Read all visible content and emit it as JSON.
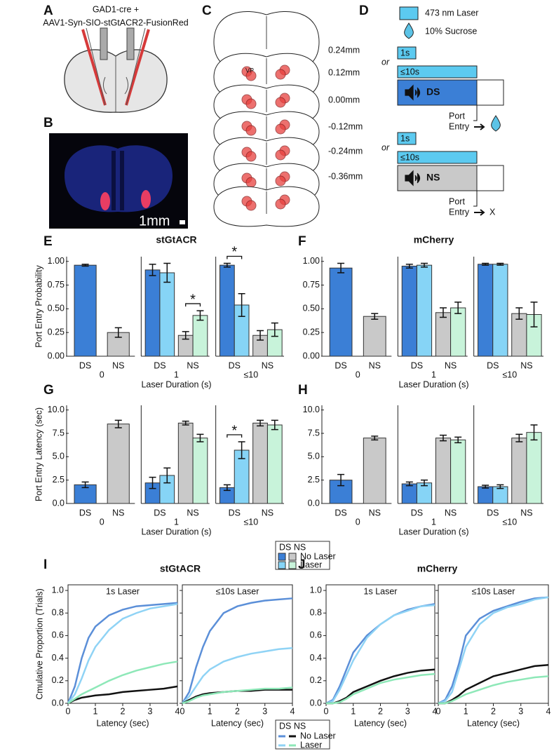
{
  "panels": {
    "A": {
      "label": "A",
      "lines": [
        "GAD1-cre +",
        "AAV1-Syn-SIO-stGtACR2-FusionRed"
      ]
    },
    "B": {
      "label": "B",
      "scale": "1mm"
    },
    "C": {
      "label": "C",
      "inset": "VP",
      "levels": [
        "0.24mm",
        "0.12mm",
        "0.00mm",
        "-0.12mm",
        "-0.24mm",
        "-0.36mm"
      ]
    },
    "D": {
      "label": "D",
      "legend": [
        "473 nm Laser",
        "10% Sucrose"
      ],
      "trials": [
        {
          "or": "or",
          "short": "1s",
          "long": "≤10s",
          "cue": "DS",
          "port": "Port",
          "entry": "Entry"
        },
        {
          "or": "or",
          "short": "1s",
          "long": "≤10s",
          "cue": "NS",
          "port": "Port",
          "entry": "Entry",
          "outcome": "X"
        }
      ]
    }
  },
  "chart_data": [
    {
      "type": "bar",
      "panel": "E",
      "title": "stGtACR",
      "ylabel": "Port Entry Probability",
      "xlabel": "Laser Duration (s)",
      "groups": [
        "0",
        "1",
        "≤10"
      ],
      "categories": [
        "DS",
        "NS"
      ],
      "ylim": [
        0,
        1.05
      ],
      "yticks": [
        {
          "value": 0,
          "label": "0.00"
        },
        {
          "value": 0.25,
          "label": "0.25"
        },
        {
          "value": 0.5,
          "label": "0.50"
        },
        {
          "value": 0.75,
          "label": "0.75"
        },
        {
          "value": 1,
          "label": "1.00"
        }
      ],
      "series": [
        {
          "name": "No Laser",
          "colors": [
            "#3b7fd6",
            "#c9c9c9"
          ],
          "values": [
            [
              0.96,
              0.25
            ],
            [
              0.91,
              0.22
            ],
            [
              0.96,
              0.22
            ]
          ],
          "errors": [
            [
              0.01,
              0.05
            ],
            [
              0.06,
              0.04
            ],
            [
              0.02,
              0.05
            ]
          ]
        },
        {
          "name": "Laser",
          "colors": [
            "#86d4f6",
            "#c8f3da"
          ],
          "values": [
            null,
            [
              0.88,
              0.43
            ],
            [
              0.54,
              0.28
            ]
          ],
          "errors": [
            null,
            [
              0.1,
              0.05
            ],
            [
              0.12,
              0.07
            ]
          ]
        }
      ],
      "annotations": [
        {
          "text": "*",
          "group": "1",
          "category": "NS"
        },
        {
          "text": "*",
          "group": "≤10",
          "category": "DS"
        }
      ]
    },
    {
      "type": "bar",
      "panel": "F",
      "title": "mCherry",
      "xlabel": "Laser Duration (s)",
      "groups": [
        "0",
        "1",
        "≤10"
      ],
      "categories": [
        "DS",
        "NS"
      ],
      "ylim": [
        0,
        1.05
      ],
      "yticks": [
        {
          "value": 0,
          "label": "0.00"
        },
        {
          "value": 0.25,
          "label": "0.25"
        },
        {
          "value": 0.5,
          "label": "0.50"
        },
        {
          "value": 0.75,
          "label": "0.75"
        },
        {
          "value": 1,
          "label": "1.00"
        }
      ],
      "series": [
        {
          "name": "No Laser",
          "colors": [
            "#3b7fd6",
            "#c9c9c9"
          ],
          "values": [
            [
              0.93,
              0.42
            ],
            [
              0.95,
              0.46
            ],
            [
              0.97,
              0.45
            ]
          ],
          "errors": [
            [
              0.05,
              0.03
            ],
            [
              0.02,
              0.05
            ],
            [
              0.01,
              0.06
            ]
          ]
        },
        {
          "name": "Laser",
          "colors": [
            "#86d4f6",
            "#c8f3da"
          ],
          "values": [
            null,
            [
              0.96,
              0.51
            ],
            [
              0.97,
              0.44
            ]
          ],
          "errors": [
            null,
            [
              0.02,
              0.06
            ],
            [
              0.01,
              0.13
            ]
          ]
        }
      ]
    },
    {
      "type": "bar",
      "panel": "G",
      "ylabel": "Port Entry Latency (sec)",
      "xlabel": "Laser Duration (s)",
      "legend_header": "DS NS",
      "groups": [
        "0",
        "1",
        "≤10"
      ],
      "categories": [
        "DS",
        "NS"
      ],
      "ylim": [
        0,
        10.5
      ],
      "yticks": [
        {
          "value": 0,
          "label": "0.0"
        },
        {
          "value": 2.5,
          "label": "2.5"
        },
        {
          "value": 5,
          "label": "5.0"
        },
        {
          "value": 7.5,
          "label": "7.5"
        },
        {
          "value": 10,
          "label": "10.0"
        }
      ],
      "series": [
        {
          "name": "No Laser",
          "colors": [
            "#3b7fd6",
            "#c9c9c9"
          ],
          "values": [
            [
              2.0,
              8.5
            ],
            [
              2.2,
              8.6
            ],
            [
              1.7,
              8.6
            ]
          ],
          "errors": [
            [
              0.3,
              0.4
            ],
            [
              0.6,
              0.2
            ],
            [
              0.3,
              0.3
            ]
          ]
        },
        {
          "name": "Laser",
          "colors": [
            "#86d4f6",
            "#c8f3da"
          ],
          "values": [
            null,
            [
              3.0,
              7.0
            ],
            [
              5.7,
              8.4
            ]
          ],
          "errors": [
            null,
            [
              0.8,
              0.4
            ],
            [
              0.9,
              0.5
            ]
          ]
        }
      ],
      "annotations": [
        {
          "text": "*",
          "group": "≤10",
          "category": "DS"
        }
      ]
    },
    {
      "type": "bar",
      "panel": "H",
      "xlabel": "Laser Duration (s)",
      "groups": [
        "0",
        "1",
        "≤10"
      ],
      "categories": [
        "DS",
        "NS"
      ],
      "ylim": [
        0,
        10.5
      ],
      "yticks": [
        {
          "value": 0,
          "label": "0.0"
        },
        {
          "value": 2.5,
          "label": "2.5"
        },
        {
          "value": 5,
          "label": "5.0"
        },
        {
          "value": 7.5,
          "label": "7.5"
        },
        {
          "value": 10,
          "label": "10.0"
        }
      ],
      "series": [
        {
          "name": "No Laser",
          "colors": [
            "#3b7fd6",
            "#c9c9c9"
          ],
          "values": [
            [
              2.5,
              7.0
            ],
            [
              2.1,
              7.0
            ],
            [
              1.8,
              7.0
            ]
          ],
          "errors": [
            [
              0.6,
              0.2
            ],
            [
              0.2,
              0.3
            ],
            [
              0.15,
              0.4
            ]
          ]
        },
        {
          "name": "Laser",
          "colors": [
            "#86d4f6",
            "#c8f3da"
          ],
          "values": [
            null,
            [
              2.2,
              6.8
            ],
            [
              1.8,
              7.6
            ]
          ],
          "errors": [
            null,
            [
              0.3,
              0.3
            ],
            [
              0.2,
              0.8
            ]
          ]
        }
      ]
    },
    {
      "type": "line",
      "panel": "I",
      "title": "stGtACR",
      "ylabel": "Cmulative Proportion (Trials)",
      "legend_header": "DS NS",
      "x": [
        0,
        0.25,
        0.5,
        0.75,
        1,
        1.5,
        2,
        2.5,
        3,
        3.5,
        4
      ],
      "xlim": [
        0,
        4
      ],
      "xticks": [
        0,
        1,
        2,
        3,
        4
      ],
      "ylim": [
        0,
        1.05
      ],
      "yticks": [
        {
          "value": 0,
          "label": "0.0"
        },
        {
          "value": 0.2,
          "label": "0.2"
        },
        {
          "value": 0.4,
          "label": "0.4"
        },
        {
          "value": 0.6,
          "label": "0.6"
        },
        {
          "value": 0.8,
          "label": "0.8"
        },
        {
          "value": 1,
          "label": "1.0"
        }
      ],
      "subplots": [
        {
          "title": "1s Laser",
          "xlabel": "Latency (sec)",
          "series": [
            {
              "name": "No Laser",
              "category": "DS",
              "color": "#5b8fd8",
              "values": [
                0,
                0.15,
                0.4,
                0.58,
                0.68,
                0.78,
                0.83,
                0.86,
                0.87,
                0.88,
                0.89
              ]
            },
            {
              "name": "Laser",
              "category": "DS",
              "color": "#8fd3f5",
              "values": [
                0,
                0.08,
                0.22,
                0.38,
                0.5,
                0.65,
                0.75,
                0.8,
                0.84,
                0.86,
                0.88
              ]
            },
            {
              "name": "No Laser",
              "category": "NS",
              "color": "#111111",
              "values": [
                0,
                0.03,
                0.05,
                0.06,
                0.07,
                0.08,
                0.1,
                0.11,
                0.12,
                0.13,
                0.15
              ]
            },
            {
              "name": "Laser",
              "category": "NS",
              "color": "#8ee8b8",
              "values": [
                0,
                0.04,
                0.08,
                0.11,
                0.14,
                0.2,
                0.25,
                0.29,
                0.32,
                0.35,
                0.37
              ]
            }
          ]
        },
        {
          "title": "≤10s Laser",
          "xlabel": "Latency (sec)",
          "series": [
            {
              "name": "No Laser",
              "category": "DS",
              "color": "#5b8fd8",
              "values": [
                0,
                0.1,
                0.32,
                0.5,
                0.64,
                0.8,
                0.86,
                0.89,
                0.91,
                0.92,
                0.93
              ]
            },
            {
              "name": "Laser",
              "category": "DS",
              "color": "#8fd3f5",
              "values": [
                0,
                0.06,
                0.15,
                0.24,
                0.3,
                0.37,
                0.41,
                0.44,
                0.46,
                0.48,
                0.49
              ]
            },
            {
              "name": "No Laser",
              "category": "NS",
              "color": "#111111",
              "values": [
                0,
                0.03,
                0.06,
                0.08,
                0.09,
                0.1,
                0.11,
                0.11,
                0.12,
                0.12,
                0.12
              ]
            },
            {
              "name": "Laser",
              "category": "NS",
              "color": "#8ee8b8",
              "values": [
                0,
                0.02,
                0.05,
                0.07,
                0.08,
                0.1,
                0.11,
                0.12,
                0.13,
                0.13,
                0.14
              ]
            }
          ]
        }
      ]
    },
    {
      "type": "line",
      "panel": "J",
      "title": "mCherry",
      "x": [
        0,
        0.25,
        0.5,
        0.75,
        1,
        1.5,
        2,
        2.5,
        3,
        3.5,
        4
      ],
      "xlim": [
        0,
        4
      ],
      "xticks": [
        0,
        1,
        2,
        3,
        4
      ],
      "ylim": [
        0,
        1.05
      ],
      "yticks": [
        {
          "value": 0,
          "label": "0.0"
        },
        {
          "value": 0.2,
          "label": "0.2"
        },
        {
          "value": 0.4,
          "label": "0.4"
        },
        {
          "value": 0.6,
          "label": "0.6"
        },
        {
          "value": 0.8,
          "label": "0.8"
        },
        {
          "value": 1,
          "label": "1.0"
        }
      ],
      "subplots": [
        {
          "title": "1s Laser",
          "xlabel": "Latency (sec)",
          "series": [
            {
              "name": "No Laser",
              "category": "DS",
              "color": "#5b8fd8",
              "values": [
                0,
                0.03,
                0.15,
                0.3,
                0.45,
                0.6,
                0.7,
                0.78,
                0.83,
                0.86,
                0.88
              ]
            },
            {
              "name": "Laser",
              "category": "DS",
              "color": "#8fd3f5",
              "values": [
                0,
                0.02,
                0.12,
                0.25,
                0.38,
                0.58,
                0.7,
                0.78,
                0.82,
                0.86,
                0.87
              ]
            },
            {
              "name": "No Laser",
              "category": "NS",
              "color": "#111111",
              "values": [
                0,
                0,
                0.02,
                0.05,
                0.1,
                0.15,
                0.2,
                0.24,
                0.27,
                0.29,
                0.3
              ]
            },
            {
              "name": "Laser",
              "category": "NS",
              "color": "#8ee8b8",
              "values": [
                0,
                0,
                0.01,
                0.04,
                0.08,
                0.13,
                0.18,
                0.21,
                0.23,
                0.25,
                0.26
              ]
            }
          ]
        },
        {
          "title": "≤10s Laser",
          "xlabel": "Latency (sec)",
          "series": [
            {
              "name": "No Laser",
              "category": "DS",
              "color": "#5b8fd8",
              "values": [
                0,
                0.03,
                0.15,
                0.35,
                0.6,
                0.75,
                0.82,
                0.86,
                0.9,
                0.93,
                0.94
              ]
            },
            {
              "name": "Laser",
              "category": "DS",
              "color": "#8fd3f5",
              "values": [
                0,
                0.02,
                0.1,
                0.3,
                0.5,
                0.7,
                0.8,
                0.85,
                0.88,
                0.92,
                0.94
              ]
            },
            {
              "name": "No Laser",
              "category": "NS",
              "color": "#111111",
              "values": [
                0,
                0,
                0.03,
                0.07,
                0.12,
                0.18,
                0.24,
                0.27,
                0.3,
                0.33,
                0.34
              ]
            },
            {
              "name": "Laser",
              "category": "NS",
              "color": "#8ee8b8",
              "values": [
                0,
                0,
                0.02,
                0.05,
                0.08,
                0.12,
                0.16,
                0.19,
                0.21,
                0.23,
                0.24
              ]
            }
          ]
        }
      ]
    }
  ]
}
